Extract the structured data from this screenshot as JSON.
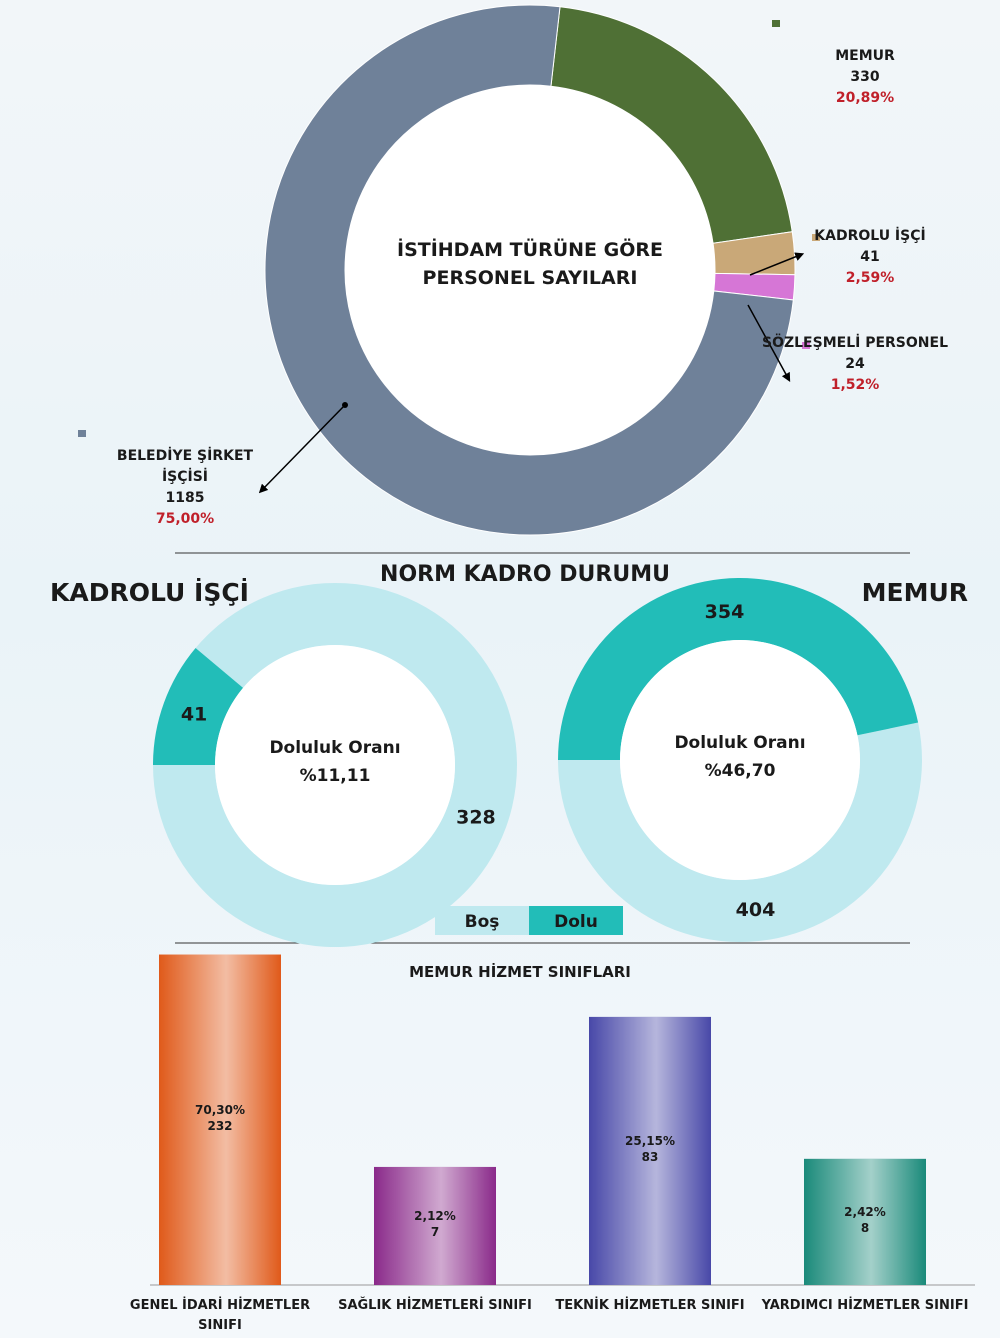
{
  "chart_data": [
    {
      "type": "donut",
      "title": "İSTİHDAM TÜRÜNE GÖRE PERSONEL SAYILARI",
      "categories": [
        "MEMUR",
        "KADROLU İŞÇİ",
        "SÖZLEŞMELİ PERSONEL",
        "BELEDİYE ŞİRKET İŞÇİSİ"
      ],
      "values": [
        330,
        41,
        24,
        1185
      ],
      "percent_labels": [
        "20,89%",
        "2,59%",
        "1,52%",
        "75,00%"
      ],
      "colors": [
        "#4f7035",
        "#c9a878",
        "#d676d6",
        "#6f8199"
      ]
    },
    {
      "type": "donut_pair",
      "title": "NORM KADRO DURUMU",
      "categories": [
        "Boş",
        "Dolu"
      ],
      "colors": [
        "#bfe9ef",
        "#22bdb8"
      ],
      "center_label": "Doluluk Oranı",
      "charts": [
        {
          "title": "KADROLU İŞÇİ",
          "values": [
            328,
            41
          ],
          "rate_label": "%11,11"
        },
        {
          "title": "MEMUR",
          "values": [
            404,
            354
          ],
          "rate_label": "%46,70"
        }
      ]
    },
    {
      "type": "bar",
      "title": "MEMUR HİZMET SINIFLARI",
      "categories": [
        "GENEL İDARİ HİZMETLER SINIFI",
        "SAĞLIK HİZMETLERİ SINIFI",
        "TEKNİK HİZMETLER SINIFI",
        "YARDIMCI HİZMETLER SINIFI"
      ],
      "values": [
        232,
        7,
        83,
        8
      ],
      "percent_labels": [
        "70,30%",
        "2,12%",
        "25,15%",
        "2,42%"
      ],
      "colors": [
        "#e05a1a",
        "#8a2a8a",
        "#4848a8",
        "#1a8a7a"
      ],
      "ylim": [
        1,
        250
      ],
      "log_scale": true
    }
  ]
}
